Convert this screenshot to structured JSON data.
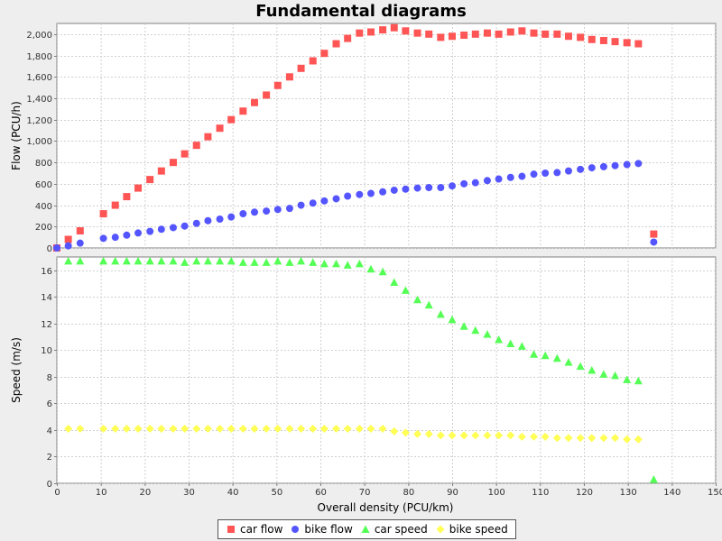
{
  "chart_data": {
    "title": "Fundamental diagrams",
    "type": "scatter",
    "xlabel": "Overall density (PCU/km)",
    "xlim": [
      0,
      150
    ],
    "xticks": [
      "0",
      "10",
      "20",
      "30",
      "40",
      "50",
      "60",
      "70",
      "80",
      "90",
      "100",
      "110",
      "120",
      "130",
      "140",
      "150"
    ],
    "grid": true,
    "legend_position": "bottom",
    "panels": [
      {
        "ylabel": "Flow (PCU/h)",
        "ylim": [
          0,
          2100
        ],
        "yticks": [
          "0",
          "200",
          "400",
          "600",
          "800",
          "1,000",
          "1,200",
          "1,400",
          "1,600",
          "1,800",
          "2,000"
        ],
        "series": [
          {
            "name": "car flow",
            "marker": "square",
            "color": "#ff5555",
            "x": [
              0,
              2.6,
              5.3,
              10.6,
              13.3,
              15.9,
              18.5,
              21.2,
              23.8,
              26.5,
              29.1,
              31.8,
              34.4,
              37.1,
              39.7,
              42.4,
              45,
              47.7,
              50.3,
              53,
              55.6,
              58.3,
              60.9,
              63.6,
              66.2,
              68.9,
              71.5,
              74.2,
              76.8,
              79.4,
              82.1,
              84.7,
              87.4,
              90,
              92.7,
              95.3,
              98,
              100.6,
              103.3,
              105.9,
              108.6,
              111.2,
              113.9,
              116.5,
              119.2,
              121.8,
              124.5,
              127.1,
              129.8,
              132.4,
              135.9
            ],
            "y": [
              0,
              80,
              160,
              320,
              400,
              480,
              560,
              640,
              720,
              800,
              880,
              960,
              1040,
              1120,
              1200,
              1280,
              1360,
              1430,
              1520,
              1600,
              1680,
              1750,
              1820,
              1910,
              1960,
              2010,
              2020,
              2040,
              2060,
              2030,
              2010,
              2000,
              1970,
              1980,
              1990,
              2000,
              2010,
              2000,
              2020,
              2030,
              2010,
              2000,
              2000,
              1980,
              1970,
              1950,
              1940,
              1930,
              1920,
              1910,
              130
            ]
          },
          {
            "name": "bike flow",
            "marker": "circle",
            "color": "#5555ff",
            "x": [
              0,
              2.6,
              5.3,
              10.6,
              13.3,
              15.9,
              18.5,
              21.2,
              23.8,
              26.5,
              29.1,
              31.8,
              34.4,
              37.1,
              39.7,
              42.4,
              45,
              47.7,
              50.3,
              53,
              55.6,
              58.3,
              60.9,
              63.6,
              66.2,
              68.9,
              71.5,
              74.2,
              76.8,
              79.4,
              82.1,
              84.7,
              87.4,
              90,
              92.7,
              95.3,
              98,
              100.6,
              103.3,
              105.9,
              108.6,
              111.2,
              113.9,
              116.5,
              119.2,
              121.8,
              124.5,
              127.1,
              129.8,
              132.4,
              135.9
            ],
            "y": [
              0,
              20,
              45,
              90,
              100,
              120,
              140,
              155,
              175,
              190,
              205,
              230,
              255,
              270,
              290,
              320,
              335,
              345,
              360,
              370,
              400,
              420,
              440,
              460,
              485,
              500,
              510,
              525,
              540,
              550,
              560,
              565,
              565,
              580,
              600,
              610,
              630,
              645,
              660,
              670,
              690,
              700,
              705,
              720,
              735,
              750,
              760,
              770,
              780,
              790,
              55
            ]
          }
        ]
      },
      {
        "ylabel": "Speed (m/s)",
        "ylim": [
          0,
          17
        ],
        "yticks": [
          "0",
          "2",
          "4",
          "6",
          "8",
          "10",
          "12",
          "14",
          "16"
        ],
        "series": [
          {
            "name": "car speed",
            "marker": "triangle",
            "color": "#55ff55",
            "x": [
              2.6,
              5.3,
              10.6,
              13.3,
              15.9,
              18.5,
              21.2,
              23.8,
              26.5,
              29.1,
              31.8,
              34.4,
              37.1,
              39.7,
              42.4,
              45,
              47.7,
              50.3,
              53,
              55.6,
              58.3,
              60.9,
              63.6,
              66.2,
              68.9,
              71.5,
              74.2,
              76.8,
              79.4,
              82.1,
              84.7,
              87.4,
              90,
              92.7,
              95.3,
              98,
              100.6,
              103.3,
              105.9,
              108.6,
              111.2,
              113.9,
              116.5,
              119.2,
              121.8,
              124.5,
              127.1,
              129.8,
              132.4,
              135.9
            ],
            "y": [
              16.7,
              16.7,
              16.7,
              16.7,
              16.7,
              16.7,
              16.7,
              16.7,
              16.7,
              16.6,
              16.7,
              16.7,
              16.7,
              16.7,
              16.6,
              16.6,
              16.6,
              16.7,
              16.6,
              16.7,
              16.6,
              16.5,
              16.5,
              16.4,
              16.5,
              16.1,
              15.9,
              15.1,
              14.5,
              13.8,
              13.4,
              12.7,
              12.3,
              11.8,
              11.5,
              11.2,
              10.8,
              10.5,
              10.3,
              9.7,
              9.6,
              9.4,
              9.1,
              8.8,
              8.5,
              8.2,
              8.1,
              7.8,
              7.7,
              0.3
            ]
          },
          {
            "name": "bike speed",
            "marker": "diamond",
            "color": "#ffff55",
            "x": [
              2.6,
              5.3,
              10.6,
              13.3,
              15.9,
              18.5,
              21.2,
              23.8,
              26.5,
              29.1,
              31.8,
              34.4,
              37.1,
              39.7,
              42.4,
              45,
              47.7,
              50.3,
              53,
              55.6,
              58.3,
              60.9,
              63.6,
              66.2,
              68.9,
              71.5,
              74.2,
              76.8,
              79.4,
              82.1,
              84.7,
              87.4,
              90,
              92.7,
              95.3,
              98,
              100.6,
              103.3,
              105.9,
              108.6,
              111.2,
              113.9,
              116.5,
              119.2,
              121.8,
              124.5,
              127.1,
              129.8,
              132.4
            ],
            "y": [
              4.1,
              4.1,
              4.1,
              4.1,
              4.1,
              4.1,
              4.1,
              4.1,
              4.1,
              4.1,
              4.1,
              4.1,
              4.1,
              4.1,
              4.1,
              4.1,
              4.1,
              4.1,
              4.1,
              4.1,
              4.1,
              4.1,
              4.1,
              4.1,
              4.1,
              4.1,
              4.1,
              3.9,
              3.8,
              3.7,
              3.7,
              3.6,
              3.6,
              3.6,
              3.6,
              3.6,
              3.6,
              3.6,
              3.5,
              3.5,
              3.5,
              3.4,
              3.4,
              3.4,
              3.4,
              3.4,
              3.4,
              3.3,
              3.3
            ]
          }
        ]
      }
    ]
  }
}
